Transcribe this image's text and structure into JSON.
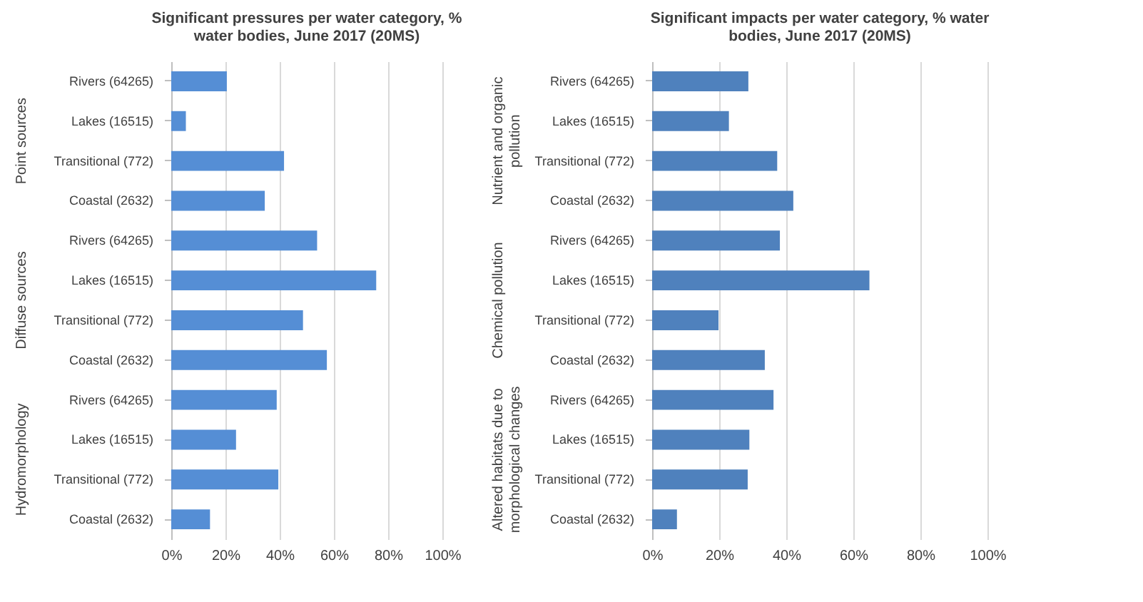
{
  "chart_data": [
    {
      "type": "bar",
      "orientation": "horizontal",
      "title": "Significant pressures per water category, % water bodies, June 2017 (20MS)",
      "categories": [
        "Rivers (64265)",
        "Lakes (16515)",
        "Transitional (772)",
        "Coastal (2632)",
        "Rivers (64265)",
        "Lakes (16515)",
        "Transitional (772)",
        "Coastal (2632)",
        "Rivers (64265)",
        "Lakes (16515)",
        "Transitional (772)",
        "Coastal (2632)"
      ],
      "values": [
        20.5,
        5.4,
        41.6,
        34.5,
        53.8,
        75.6,
        48.6,
        57.4,
        38.9,
        23.9,
        39.5,
        14.3
      ],
      "color": "#558ed5",
      "annotations": [
        "Point sources",
        "Diffuse sources",
        "Hydromorphology"
      ],
      "xlim": [
        0,
        100
      ],
      "xticks": [
        {
          "value": 0,
          "label": "0%"
        },
        {
          "value": 20,
          "label": "20%"
        },
        {
          "value": 40,
          "label": "40%"
        },
        {
          "value": 60,
          "label": "60%"
        },
        {
          "value": 80,
          "label": "80%"
        },
        {
          "value": 100,
          "label": "100%"
        }
      ],
      "grid": "x"
    },
    {
      "type": "bar",
      "orientation": "horizontal",
      "title": "Significant impacts per water category, % water bodies, June 2017 (20MS)",
      "categories": [
        "Rivers (64265)",
        "Lakes (16515)",
        "Transitional (772)",
        "Coastal (2632)",
        "Rivers (64265)",
        "Lakes (16515)",
        "Transitional (772)",
        "Coastal (2632)",
        "Rivers (64265)",
        "Lakes (16515)",
        "Transitional (772)",
        "Coastal (2632)"
      ],
      "values": [
        28.7,
        22.9,
        37.3,
        42.1,
        38.1,
        64.8,
        19.8,
        33.6,
        36.2,
        29.0,
        28.5,
        7.4
      ],
      "color": "#4f81bd",
      "annotations": [
        "Nutrient and organic pollution",
        "Chemical pollution",
        "Altered habitats due to morphological changes"
      ],
      "xlim": [
        0,
        100
      ],
      "xticks": [
        {
          "value": 0,
          "label": "0%"
        },
        {
          "value": 20,
          "label": "20%"
        },
        {
          "value": 40,
          "label": "40%"
        },
        {
          "value": 60,
          "label": "60%"
        },
        {
          "value": 80,
          "label": "80%"
        },
        {
          "value": 100,
          "label": "100%"
        }
      ],
      "grid": "x"
    }
  ]
}
